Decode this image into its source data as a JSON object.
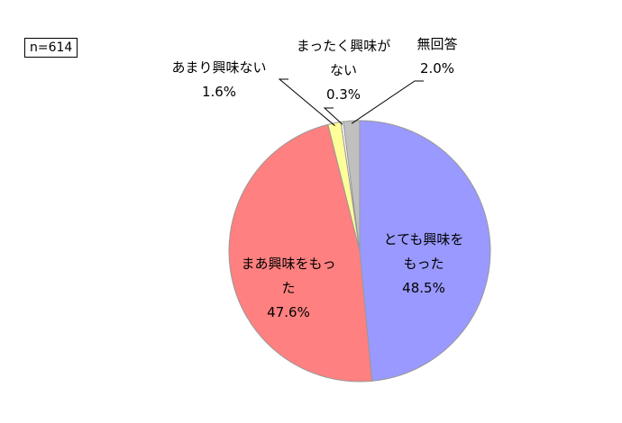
{
  "chart_data": {
    "type": "pie",
    "note": "n=614",
    "categories": [
      "とても興味をもった",
      "まあ興味をもった",
      "あまり興味ない",
      "まったく興味がない",
      "無回答"
    ],
    "values": [
      48.5,
      47.6,
      1.6,
      0.3,
      2.0
    ],
    "value_labels": [
      "48.5%",
      "47.6%",
      "1.6%",
      "0.3%",
      "2.0%"
    ],
    "colors": [
      "#9999ff",
      "#ff8080",
      "#ffff99",
      "#ffffff",
      "#c0c0c0"
    ]
  }
}
